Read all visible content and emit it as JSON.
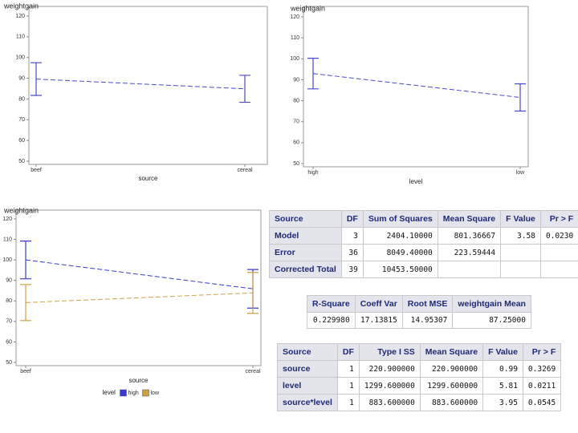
{
  "chart_data": [
    {
      "type": "line",
      "title": "weightgain",
      "x_label": "source",
      "categories": [
        "beef",
        "cereal"
      ],
      "values": [
        89.6,
        84.9
      ],
      "errors": [
        7.9,
        6.5
      ],
      "color": "#4a4ac8",
      "ylim": [
        50,
        120
      ],
      "yticks": [
        50,
        60,
        70,
        80,
        90,
        100,
        110,
        120
      ]
    },
    {
      "type": "line",
      "title": "weightgain",
      "x_label": "level",
      "categories": [
        "high",
        "low"
      ],
      "values": [
        92.95,
        81.55
      ],
      "errors": [
        7.3,
        6.5
      ],
      "color": "#4a4ac8",
      "ylim": [
        50,
        120
      ],
      "yticks": [
        50,
        60,
        70,
        80,
        90,
        100,
        110,
        120
      ]
    },
    {
      "type": "line",
      "title": "weightgain",
      "x_label": "source",
      "categories": [
        "beef",
        "cereal"
      ],
      "series": [
        {
          "name": "high",
          "color": "#3a3ad0",
          "values": [
            100,
            85.9
          ],
          "errors": [
            9.2,
            9.4
          ]
        },
        {
          "name": "low",
          "color": "#c9a24a",
          "values": [
            79.2,
            83.9
          ],
          "errors": [
            8.8,
            10
          ]
        }
      ],
      "legend_title": "level",
      "legend": "bottom",
      "ylim": [
        50,
        120
      ],
      "yticks": [
        50,
        60,
        70,
        80,
        90,
        100,
        110,
        120
      ]
    }
  ],
  "tables": [
    {
      "header": [
        "Source",
        "DF",
        "Sum of Squares",
        "Mean Square",
        "F Value",
        "Pr > F"
      ],
      "rows": [
        [
          "Model",
          "3",
          "2404.10000",
          "801.36667",
          "3.58",
          "0.0230"
        ],
        [
          "Error",
          "36",
          "8049.40000",
          "223.59444",
          "",
          ""
        ],
        [
          "Corrected Total",
          "39",
          "10453.50000",
          "",
          "",
          ""
        ]
      ]
    },
    {
      "header": [
        "R-Square",
        "Coeff Var",
        "Root MSE",
        "weightgain Mean"
      ],
      "rows": [
        [
          "0.229980",
          "17.13815",
          "14.95307",
          "87.25000"
        ]
      ]
    },
    {
      "header": [
        "Source",
        "DF",
        "Type I SS",
        "Mean Square",
        "F Value",
        "Pr > F"
      ],
      "rows": [
        [
          "source",
          "1",
          "220.900000",
          "220.900000",
          "0.99",
          "0.3269"
        ],
        [
          "level",
          "1",
          "1299.600000",
          "1299.600000",
          "5.81",
          "0.0211"
        ],
        [
          "source*level",
          "1",
          "883.600000",
          "883.600000",
          "3.95",
          "0.0545"
        ]
      ]
    }
  ]
}
